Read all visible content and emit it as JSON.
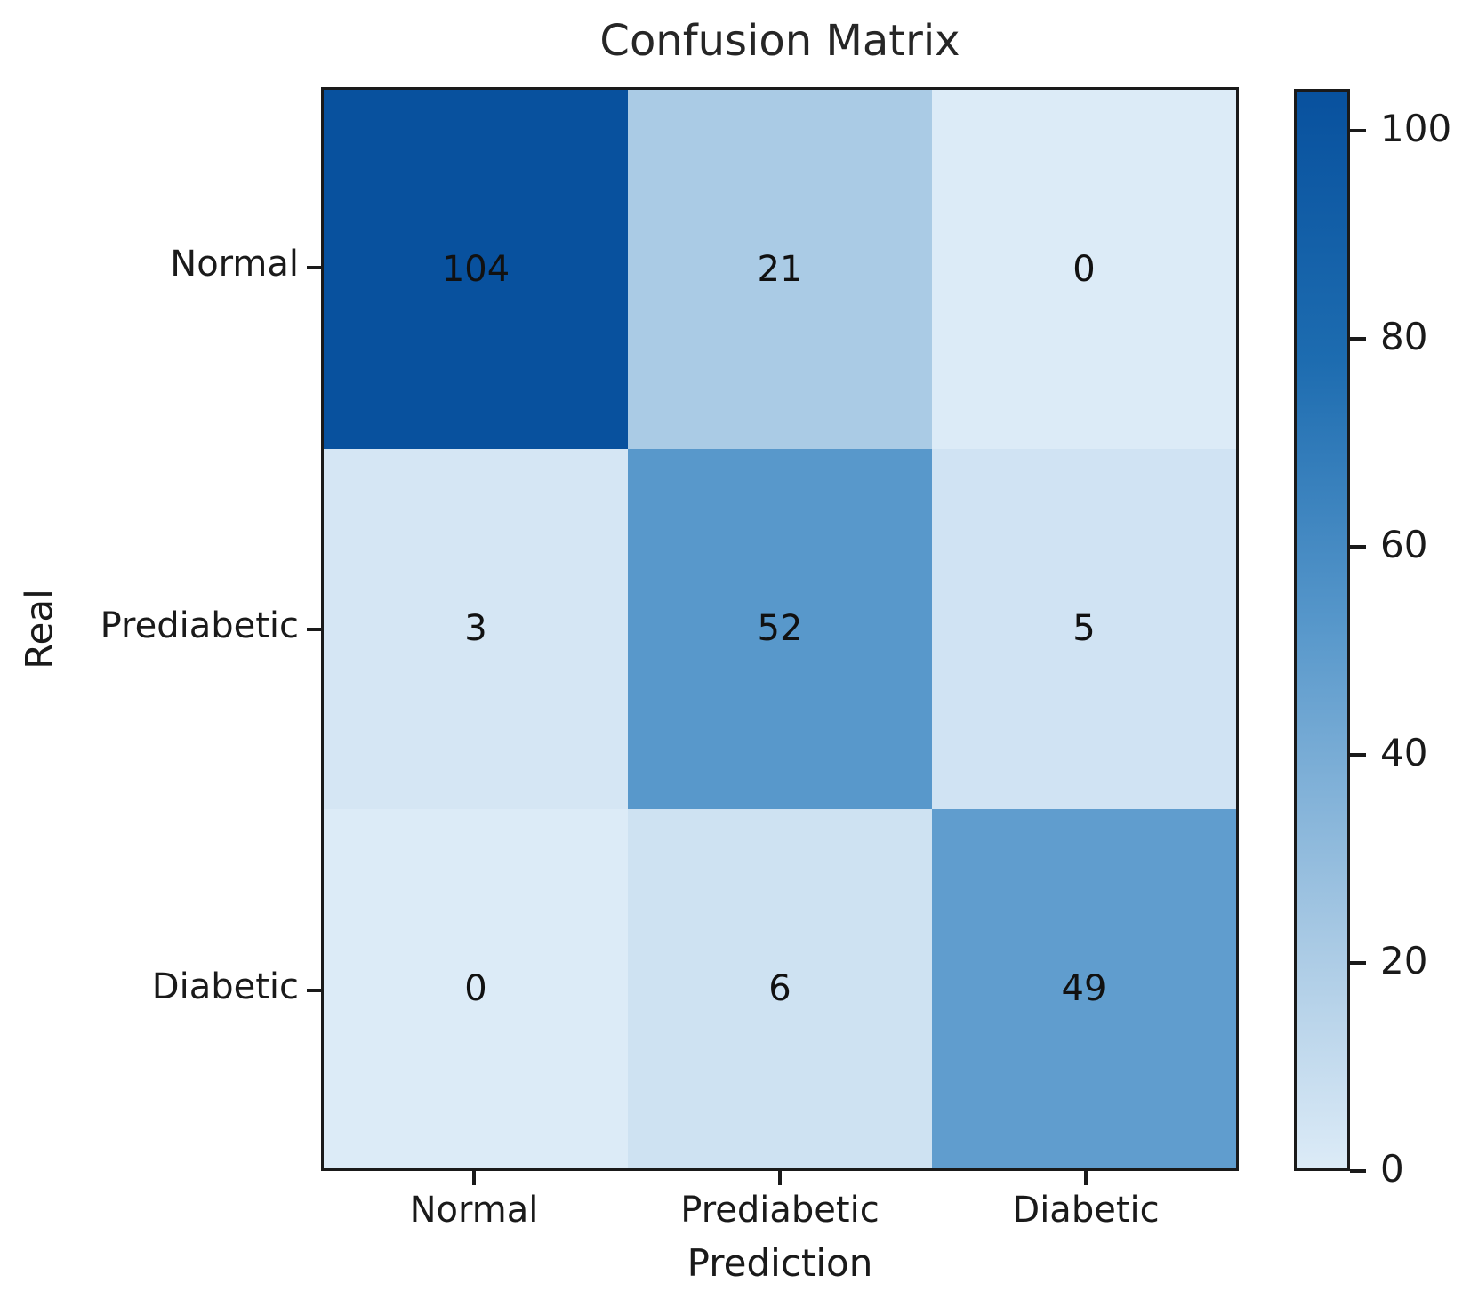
{
  "figure": {
    "background_color": "#ffffff",
    "spine_color": "#1a1a1a",
    "title_color": "#262626",
    "annotation_color": "#111111"
  },
  "chart_data": {
    "type": "heatmap",
    "title": "Confusion Matrix",
    "xlabel": "Prediction",
    "ylabel": "Real",
    "x_categories": [
      "Normal",
      "Prediabetic",
      "Diabetic"
    ],
    "y_categories": [
      "Normal",
      "Prediabetic",
      "Diabetic"
    ],
    "matrix": [
      [
        104,
        21,
        0
      ],
      [
        3,
        52,
        5
      ],
      [
        0,
        6,
        49
      ]
    ],
    "vmin": 0,
    "vmax": 104,
    "grid": false,
    "legend_position": "colorbar-right",
    "colorbar_ticks": [
      0,
      20,
      40,
      60,
      80,
      100
    ],
    "colormap": {
      "name": "Blues",
      "stops": [
        {
          "t": 0.0,
          "color": "#dcebf7"
        },
        {
          "t": 0.2,
          "color": "#abcbe5"
        },
        {
          "t": 0.5,
          "color": "#5898cb"
        },
        {
          "t": 0.75,
          "color": "#1d6cb0"
        },
        {
          "t": 1.0,
          "color": "#08519e"
        }
      ]
    }
  }
}
